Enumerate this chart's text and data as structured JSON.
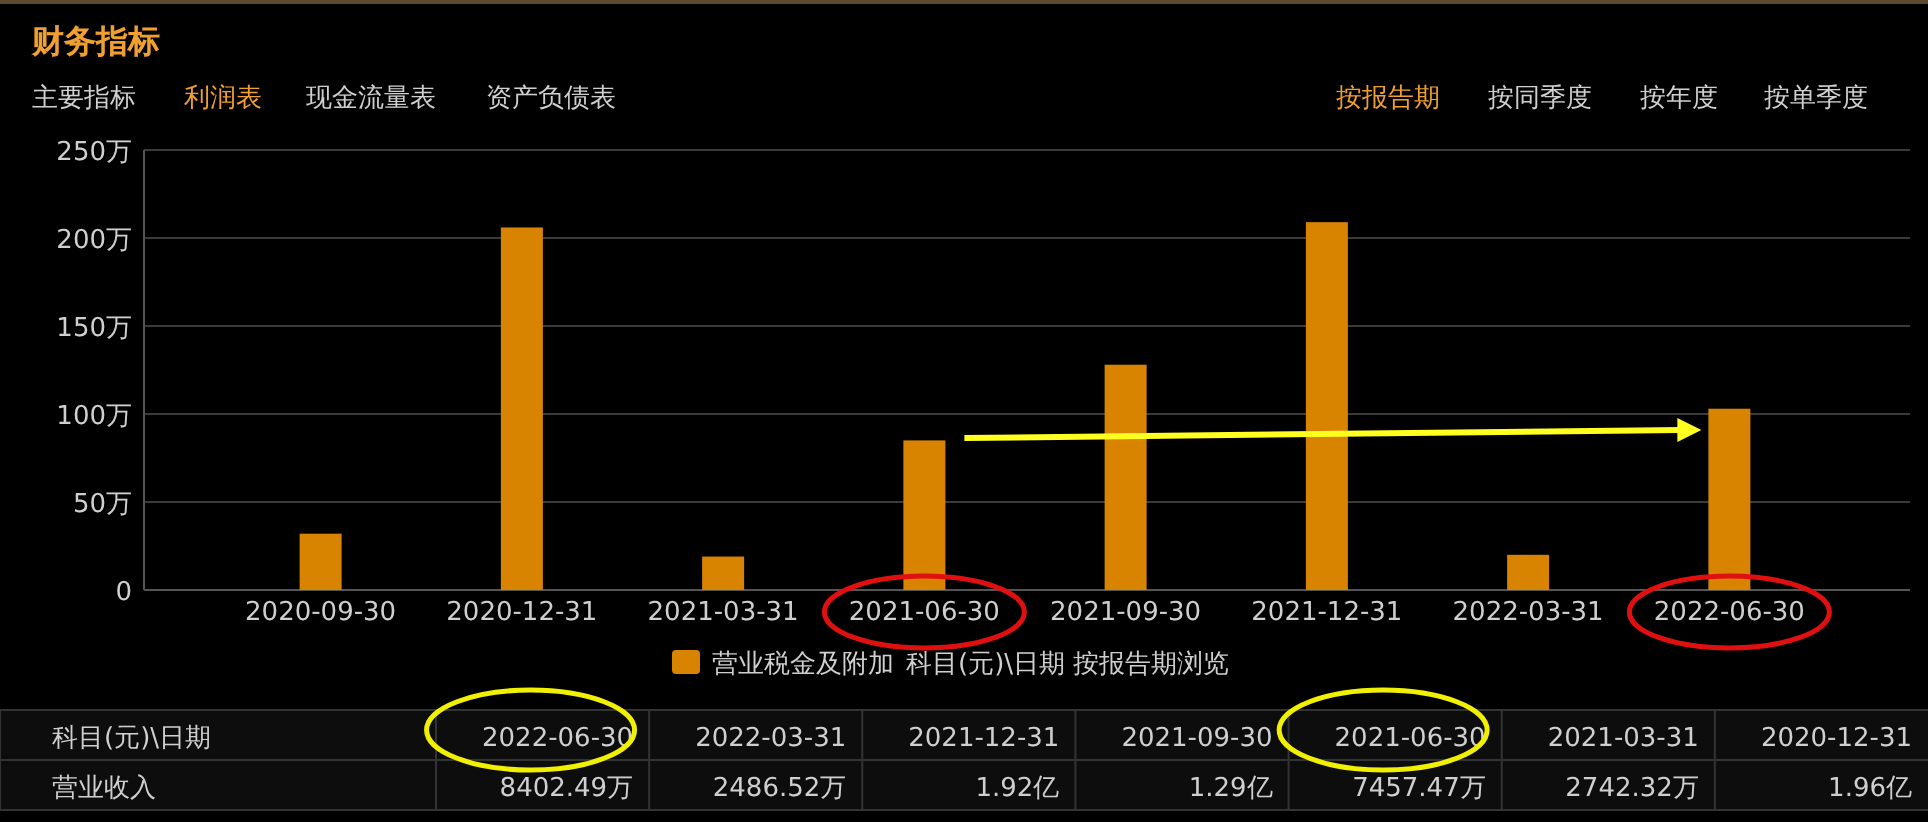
{
  "chart_data": [
    {
      "type": "bar",
      "title": "财务指标",
      "annotations": [
        "主要指标",
        "利润表",
        "现金流量表",
        "资产负债表",
        "按报告期",
        "按同季度",
        "按年度",
        "按单季度",
        "科目(元)\\日期 按报告期浏览"
      ],
      "categories": [
        "2020-09-30",
        "2020-12-31",
        "2021-03-31",
        "2021-06-30",
        "2021-09-30",
        "2021-12-31",
        "2022-03-31",
        "2022-06-30"
      ],
      "series": [
        {
          "name": "营业税金及附加",
          "color": "#d98400",
          "values": [
            32,
            206,
            19,
            85,
            128,
            209,
            20,
            103
          ]
        }
      ],
      "ylim": [
        0,
        250
      ],
      "yticks": [
        0,
        {
          "value": 50,
          "label": "50万"
        },
        {
          "value": 100,
          "label": "100万"
        },
        {
          "value": 150,
          "label": "150万"
        },
        {
          "value": 200,
          "label": "200万"
        },
        {
          "value": 250,
          "label": "250万"
        }
      ],
      "grid": "y",
      "legend": "bottom"
    },
    {
      "type": "other",
      "annotations": [
        "科目(元)\\日期",
        "2022-06-30",
        "2022-03-31",
        "2021-12-31",
        "2021-09-30",
        "2021-06-30",
        "2021-03-31",
        "2020-12-31",
        "营业收入",
        "8402.49万",
        "2486.52万",
        "1.92亿",
        "1.29亿",
        "7457.47万",
        "2742.32万",
        "1.96亿"
      ]
    }
  ]
}
